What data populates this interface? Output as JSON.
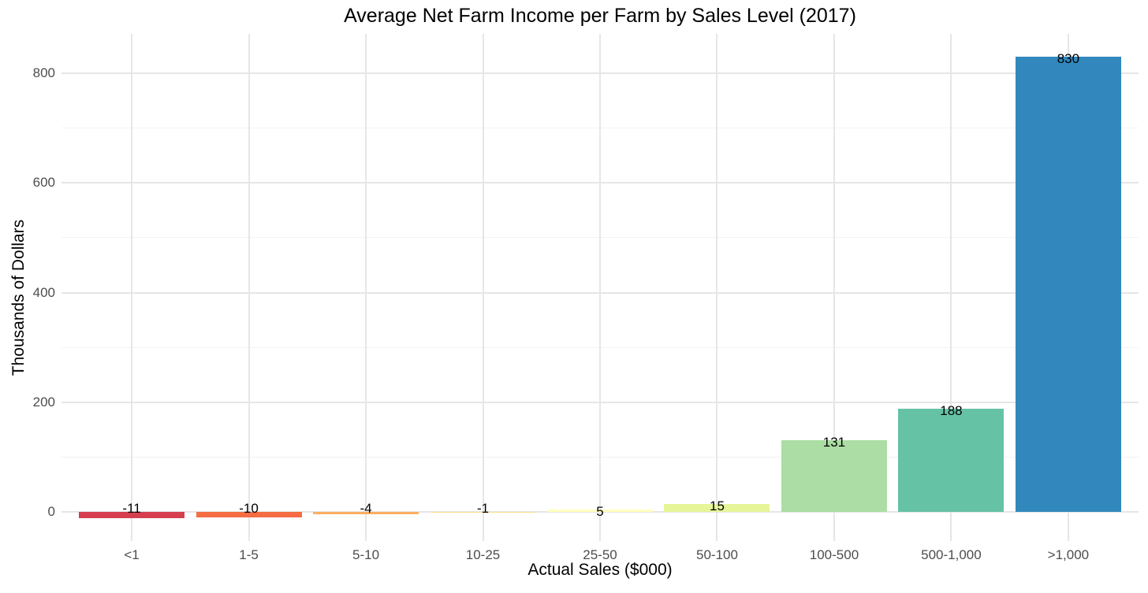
{
  "chart_data": {
    "type": "bar",
    "title": "Average Net Farm Income per Farm by Sales Level (2017)",
    "xlabel": "Actual Sales ($000)",
    "ylabel": "Thousands of Dollars",
    "categories": [
      "<1",
      "1-5",
      "5-10",
      "10-25",
      "25-50",
      "50-100",
      "100-500",
      "500-1,000",
      ">1,000"
    ],
    "values": [
      -11,
      -10,
      -4,
      -1,
      5,
      15,
      131,
      188,
      830
    ],
    "value_labels": [
      "-11",
      "-10",
      "-4",
      "-1",
      "5",
      "15",
      "131",
      "188",
      "830"
    ],
    "bar_colors": [
      "#d53e4f",
      "#f46d43",
      "#fdae61",
      "#fee08b",
      "#ffffbf",
      "#e6f598",
      "#abdda4",
      "#66c2a5",
      "#3288bd"
    ],
    "palette_name": "spectral-9",
    "ylim": [
      -53,
      872
    ],
    "yticks_major": [
      0,
      200,
      400,
      600,
      800
    ],
    "yticks_minor": [
      100,
      300,
      500,
      700
    ],
    "bar_width_fraction": 0.9,
    "grid": "on",
    "legend": "none",
    "colors": {
      "background": "#ffffff",
      "grid_major": "#e6e6e6",
      "grid_minor": "#f2f2f2",
      "tick_label": "#4d4d4d",
      "text": "#000000"
    }
  }
}
